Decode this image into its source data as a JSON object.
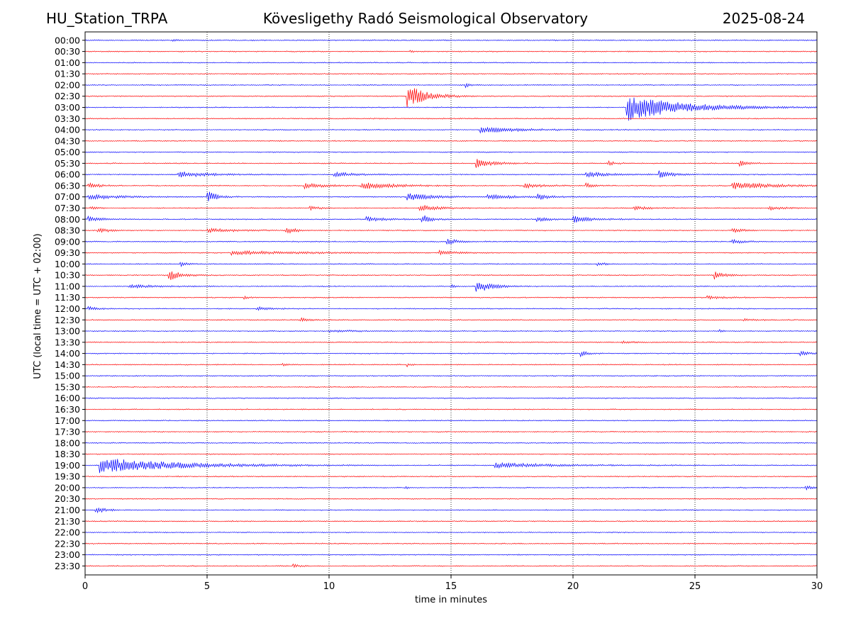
{
  "header": {
    "station": "HU_Station_TRPA",
    "observatory": "Kövesligethy Radó Seismological Observatory",
    "date": "2025-08-24"
  },
  "chart_data": {
    "type": "line",
    "title": "Kövesligethy Radó Seismological Observatory",
    "xlabel": "time in minutes",
    "ylabel": "UTC (local time = UTC + 02:00)",
    "xlim": [
      0,
      30
    ],
    "xticks": [
      "0",
      "5",
      "10",
      "15",
      "20",
      "25",
      "30"
    ],
    "vertical_grid": "dotted, every 5 minutes",
    "colors": {
      "even_rows": "#0000ff",
      "odd_rows": "#ff0000",
      "axis": "#000000"
    },
    "rows": [
      {
        "label": "00:00",
        "events": [
          {
            "t": 3.6,
            "amp": 0.25,
            "dur": 0.3
          }
        ]
      },
      {
        "label": "00:30",
        "events": [
          {
            "t": 13.3,
            "amp": 0.35,
            "dur": 0.2
          }
        ]
      },
      {
        "label": "01:00",
        "events": []
      },
      {
        "label": "01:30",
        "events": []
      },
      {
        "label": "02:00",
        "events": [
          {
            "t": 15.6,
            "amp": 0.5,
            "dur": 0.4
          }
        ]
      },
      {
        "label": "02:30",
        "events": [
          {
            "t": 13.2,
            "amp": 2.5,
            "dur": 1.6
          }
        ]
      },
      {
        "label": "03:00",
        "events": [
          {
            "t": 22.2,
            "amp": 3.0,
            "dur": 4.5
          }
        ]
      },
      {
        "label": "03:30",
        "events": []
      },
      {
        "label": "04:00",
        "events": [
          {
            "t": 16.2,
            "amp": 0.6,
            "dur": 3.5
          }
        ]
      },
      {
        "label": "04:30",
        "events": []
      },
      {
        "label": "05:00",
        "events": []
      },
      {
        "label": "05:30",
        "events": [
          {
            "t": 16.0,
            "amp": 1.0,
            "dur": 1.5
          },
          {
            "t": 21.4,
            "amp": 0.5,
            "dur": 0.6
          },
          {
            "t": 26.8,
            "amp": 0.6,
            "dur": 0.8
          }
        ]
      },
      {
        "label": "06:00",
        "events": [
          {
            "t": 3.8,
            "amp": 0.7,
            "dur": 2.5
          },
          {
            "t": 10.2,
            "amp": 0.5,
            "dur": 2.0
          },
          {
            "t": 20.5,
            "amp": 0.6,
            "dur": 2.0
          },
          {
            "t": 23.5,
            "amp": 0.8,
            "dur": 1.2
          }
        ]
      },
      {
        "label": "06:30",
        "events": [
          {
            "t": 0.1,
            "amp": 0.6,
            "dur": 1.0
          },
          {
            "t": 9.0,
            "amp": 0.6,
            "dur": 1.5
          },
          {
            "t": 11.3,
            "amp": 0.8,
            "dur": 2.8
          },
          {
            "t": 18.0,
            "amp": 0.5,
            "dur": 1.5
          },
          {
            "t": 20.5,
            "amp": 0.6,
            "dur": 0.6
          },
          {
            "t": 26.5,
            "amp": 0.8,
            "dur": 3.5
          }
        ]
      },
      {
        "label": "07:00",
        "events": [
          {
            "t": 0.1,
            "amp": 0.6,
            "dur": 2.5
          },
          {
            "t": 5.0,
            "amp": 1.4,
            "dur": 0.8
          },
          {
            "t": 13.2,
            "amp": 0.9,
            "dur": 2.0
          },
          {
            "t": 16.5,
            "amp": 0.5,
            "dur": 2.5
          },
          {
            "t": 18.5,
            "amp": 0.7,
            "dur": 1.0
          }
        ]
      },
      {
        "label": "07:30",
        "events": [
          {
            "t": 0.2,
            "amp": 0.4,
            "dur": 0.6
          },
          {
            "t": 9.2,
            "amp": 0.4,
            "dur": 0.8
          },
          {
            "t": 13.7,
            "amp": 0.7,
            "dur": 1.5
          },
          {
            "t": 22.5,
            "amp": 0.4,
            "dur": 1.5
          },
          {
            "t": 28.0,
            "amp": 0.4,
            "dur": 1.5
          }
        ]
      },
      {
        "label": "08:00",
        "events": [
          {
            "t": 0.1,
            "amp": 0.6,
            "dur": 1.0
          },
          {
            "t": 11.5,
            "amp": 0.5,
            "dur": 1.5
          },
          {
            "t": 13.8,
            "amp": 1.0,
            "dur": 0.8
          },
          {
            "t": 18.5,
            "amp": 0.6,
            "dur": 1.0
          },
          {
            "t": 20.0,
            "amp": 0.8,
            "dur": 1.5
          }
        ]
      },
      {
        "label": "08:30",
        "events": [
          {
            "t": 0.5,
            "amp": 0.5,
            "dur": 1.0
          },
          {
            "t": 5.0,
            "amp": 0.4,
            "dur": 2.5
          },
          {
            "t": 8.2,
            "amp": 0.7,
            "dur": 0.8
          },
          {
            "t": 26.5,
            "amp": 0.5,
            "dur": 1.0
          }
        ]
      },
      {
        "label": "09:00",
        "events": [
          {
            "t": 14.8,
            "amp": 0.6,
            "dur": 1.0
          },
          {
            "t": 26.5,
            "amp": 0.5,
            "dur": 1.0
          }
        ]
      },
      {
        "label": "09:30",
        "events": [
          {
            "t": 6.0,
            "amp": 0.4,
            "dur": 6.0
          },
          {
            "t": 14.5,
            "amp": 0.4,
            "dur": 1.5
          }
        ]
      },
      {
        "label": "10:00",
        "events": [
          {
            "t": 3.9,
            "amp": 0.6,
            "dur": 0.5
          },
          {
            "t": 21.0,
            "amp": 0.4,
            "dur": 0.6
          }
        ]
      },
      {
        "label": "10:30",
        "events": [
          {
            "t": 3.4,
            "amp": 1.3,
            "dur": 1.0
          },
          {
            "t": 25.8,
            "amp": 0.9,
            "dur": 0.8
          }
        ]
      },
      {
        "label": "11:00",
        "events": [
          {
            "t": 1.8,
            "amp": 0.4,
            "dur": 2.5
          },
          {
            "t": 15.0,
            "amp": 0.4,
            "dur": 0.4
          },
          {
            "t": 16.0,
            "amp": 1.6,
            "dur": 1.2
          }
        ]
      },
      {
        "label": "11:30",
        "events": [
          {
            "t": 6.5,
            "amp": 0.4,
            "dur": 0.4
          },
          {
            "t": 25.5,
            "amp": 0.3,
            "dur": 1.5
          }
        ]
      },
      {
        "label": "12:00",
        "events": [
          {
            "t": 0.1,
            "amp": 0.5,
            "dur": 0.7
          },
          {
            "t": 7.0,
            "amp": 0.4,
            "dur": 1.0
          }
        ]
      },
      {
        "label": "12:30",
        "events": [
          {
            "t": 8.8,
            "amp": 0.5,
            "dur": 0.8
          },
          {
            "t": 27.0,
            "amp": 0.3,
            "dur": 0.8
          }
        ]
      },
      {
        "label": "13:00",
        "events": [
          {
            "t": 10.0,
            "amp": 0.2,
            "dur": 3.0
          },
          {
            "t": 26.0,
            "amp": 0.3,
            "dur": 0.5
          }
        ]
      },
      {
        "label": "13:30",
        "events": [
          {
            "t": 22.0,
            "amp": 0.2,
            "dur": 1.5
          }
        ]
      },
      {
        "label": "14:00",
        "events": [
          {
            "t": 20.3,
            "amp": 0.7,
            "dur": 0.5
          },
          {
            "t": 29.3,
            "amp": 0.5,
            "dur": 0.7
          }
        ]
      },
      {
        "label": "14:30",
        "events": [
          {
            "t": 8.1,
            "amp": 0.4,
            "dur": 0.3
          },
          {
            "t": 13.2,
            "amp": 0.4,
            "dur": 0.3
          }
        ]
      },
      {
        "label": "15:00",
        "events": []
      },
      {
        "label": "15:30",
        "events": [
          {
            "t": 10.8,
            "amp": 0.2,
            "dur": 0.2
          }
        ]
      },
      {
        "label": "16:00",
        "events": []
      },
      {
        "label": "16:30",
        "events": []
      },
      {
        "label": "17:00",
        "events": []
      },
      {
        "label": "17:30",
        "events": []
      },
      {
        "label": "18:00",
        "events": []
      },
      {
        "label": "18:30",
        "events": []
      },
      {
        "label": "19:00",
        "events": [
          {
            "t": 0.6,
            "amp": 1.7,
            "dur": 6.5
          },
          {
            "t": 16.8,
            "amp": 0.5,
            "dur": 5.0
          }
        ]
      },
      {
        "label": "19:30",
        "events": []
      },
      {
        "label": "20:00",
        "events": [
          {
            "t": 13.1,
            "amp": 0.3,
            "dur": 0.2
          },
          {
            "t": 29.5,
            "amp": 0.5,
            "dur": 0.5
          }
        ]
      },
      {
        "label": "20:30",
        "events": []
      },
      {
        "label": "21:00",
        "events": [
          {
            "t": 0.4,
            "amp": 0.8,
            "dur": 0.8
          }
        ]
      },
      {
        "label": "21:30",
        "events": []
      },
      {
        "label": "22:00",
        "events": []
      },
      {
        "label": "22:30",
        "events": []
      },
      {
        "label": "23:00",
        "events": []
      },
      {
        "label": "23:30",
        "events": [
          {
            "t": 8.5,
            "amp": 0.4,
            "dur": 0.5
          }
        ]
      }
    ]
  }
}
